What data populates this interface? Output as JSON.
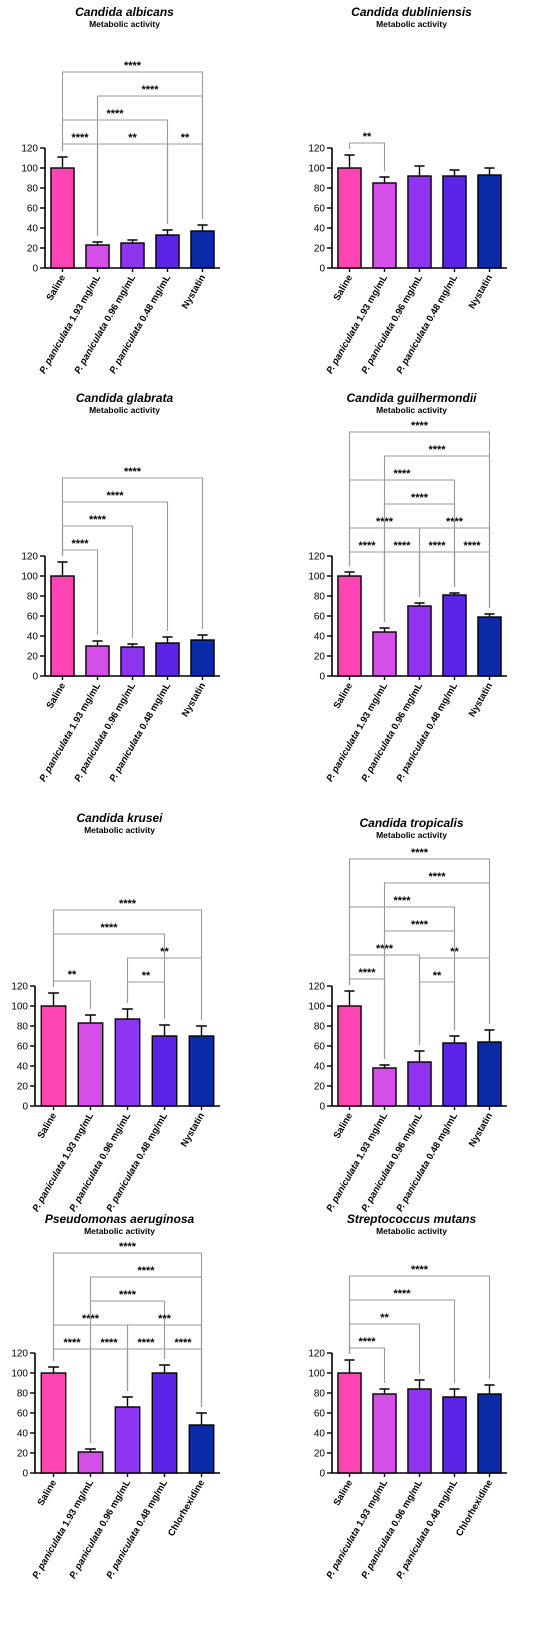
{
  "figure": {
    "colors": {
      "saline": "#ff44b4",
      "p193": "#d44ee8",
      "p096": "#8f34ef",
      "p048": "#5b24e6",
      "control": "#0b2aa7",
      "bracket": "#9a9a9a"
    }
  },
  "chart_data": [
    {
      "type": "bar",
      "title": "Candida albicans",
      "subtitle": "Metabolic activity",
      "categories": [
        "Saline",
        "P. paniculata 1.93 mg/mL",
        "P. paniculata 0.96 mg/mL",
        "P. paniculata 0.48 mg/mL",
        "Nystatin"
      ],
      "values": [
        100,
        23,
        25,
        33,
        37
      ],
      "errors": [
        11,
        3,
        3,
        5,
        6
      ],
      "ylim": [
        0,
        120
      ],
      "yticks": [
        0,
        20,
        40,
        60,
        80,
        100,
        120
      ],
      "colors": [
        "#ff44b4",
        "#d44ee8",
        "#8f34ef",
        "#5b24e6",
        "#0b2aa7"
      ],
      "significance": [
        {
          "from": 0,
          "to": 4,
          "label": "****"
        },
        {
          "from": 1,
          "to": 4,
          "label": "****"
        },
        {
          "from": 0,
          "to": 3,
          "label": "****"
        },
        {
          "from": 3,
          "to": 4,
          "label": "**"
        },
        {
          "from": 0,
          "to": 1,
          "label": "****"
        },
        {
          "from": 1,
          "to": 3,
          "label": "**"
        }
      ]
    },
    {
      "type": "bar",
      "title": "Candida dubliniensis",
      "subtitle": "Metabolic activity",
      "categories": [
        "Saline",
        "P. paniculata 1.93 mg/mL",
        "P. paniculata 0.96 mg/mL",
        "P. paniculata 0.48 mg/mL",
        "Nystatin"
      ],
      "values": [
        100,
        85,
        92,
        92,
        93
      ],
      "errors": [
        13,
        6,
        10,
        6,
        7
      ],
      "ylim": [
        0,
        120
      ],
      "yticks": [
        0,
        20,
        40,
        60,
        80,
        100,
        120
      ],
      "colors": [
        "#ff44b4",
        "#d44ee8",
        "#8f34ef",
        "#5b24e6",
        "#0b2aa7"
      ],
      "significance": [
        {
          "from": 0,
          "to": 1,
          "label": "**"
        }
      ]
    },
    {
      "type": "bar",
      "title": "Candida glabrata",
      "subtitle": "Metabolic activity",
      "categories": [
        "Saline",
        "P. paniculata 1.93 mg/mL",
        "P. paniculata 0.96 mg/mL",
        "P. paniculata 0.48 mg/mL",
        "Nystatin"
      ],
      "values": [
        100,
        30,
        29,
        33,
        36
      ],
      "errors": [
        14,
        5,
        3,
        6,
        5
      ],
      "ylim": [
        0,
        120
      ],
      "yticks": [
        0,
        20,
        40,
        60,
        80,
        100,
        120
      ],
      "colors": [
        "#ff44b4",
        "#d44ee8",
        "#8f34ef",
        "#5b24e6",
        "#0b2aa7"
      ],
      "significance": [
        {
          "from": 0,
          "to": 4,
          "label": "****"
        },
        {
          "from": 0,
          "to": 3,
          "label": "****"
        },
        {
          "from": 0,
          "to": 2,
          "label": "****"
        },
        {
          "from": 0,
          "to": 1,
          "label": "****"
        }
      ]
    },
    {
      "type": "bar",
      "title": "Candida guilhermondii",
      "subtitle": "Metabolic activity",
      "categories": [
        "Saline",
        "P. paniculata 1.93 mg/mL",
        "P. paniculata 0.96 mg/mL",
        "P. paniculata 0.48 mg/mL",
        "Nystatin"
      ],
      "values": [
        100,
        44,
        70,
        81,
        59
      ],
      "errors": [
        4,
        4,
        3,
        2,
        3
      ],
      "ylim": [
        0,
        120
      ],
      "yticks": [
        0,
        20,
        40,
        60,
        80,
        100,
        120
      ],
      "colors": [
        "#ff44b4",
        "#d44ee8",
        "#8f34ef",
        "#5b24e6",
        "#0b2aa7"
      ],
      "significance": [
        {
          "from": 0,
          "to": 4,
          "label": "****"
        },
        {
          "from": 1,
          "to": 4,
          "label": "****"
        },
        {
          "from": 0,
          "to": 3,
          "label": "****"
        },
        {
          "from": 1,
          "to": 3,
          "label": "****"
        },
        {
          "from": 0,
          "to": 2,
          "label": "****"
        },
        {
          "from": 2,
          "to": 4,
          "label": "****"
        },
        {
          "from": 0,
          "to": 1,
          "label": "****"
        },
        {
          "from": 1,
          "to": 2,
          "label": "****"
        },
        {
          "from": 2,
          "to": 3,
          "label": "****"
        },
        {
          "from": 3,
          "to": 4,
          "label": "****"
        }
      ]
    },
    {
      "type": "bar",
      "title": "Candida krusei",
      "subtitle": "Metabolic activity",
      "categories": [
        "Saline",
        "P. paniculata 1.93 mg/mL",
        "P. paniculata 0.96 mg/mL",
        "P. paniculata 0.48 mg/mL",
        "Nystatin"
      ],
      "values": [
        100,
        83,
        87,
        70,
        70
      ],
      "errors": [
        13,
        8,
        10,
        11,
        10
      ],
      "ylim": [
        0,
        120
      ],
      "yticks": [
        0,
        20,
        40,
        60,
        80,
        100,
        120
      ],
      "colors": [
        "#ff44b4",
        "#d44ee8",
        "#8f34ef",
        "#5b24e6",
        "#0b2aa7"
      ],
      "significance": [
        {
          "from": 0,
          "to": 4,
          "label": "****"
        },
        {
          "from": 0,
          "to": 3,
          "label": "****"
        },
        {
          "from": 2,
          "to": 4,
          "label": "**"
        },
        {
          "from": 0,
          "to": 1,
          "label": "**"
        },
        {
          "from": 2,
          "to": 3,
          "label": "**"
        }
      ]
    },
    {
      "type": "bar",
      "title": "Candida tropicalis",
      "subtitle": "Metabolic activity",
      "categories": [
        "Saline",
        "P. paniculata 1.93 mg/mL",
        "P. paniculata 0.96 mg/mL",
        "P. paniculata 0.48 mg/mL",
        "Nystatin"
      ],
      "values": [
        100,
        38,
        44,
        63,
        64
      ],
      "errors": [
        15,
        3,
        11,
        7,
        12
      ],
      "ylim": [
        0,
        120
      ],
      "yticks": [
        0,
        20,
        40,
        60,
        80,
        100,
        120
      ],
      "colors": [
        "#ff44b4",
        "#d44ee8",
        "#8f34ef",
        "#5b24e6",
        "#0b2aa7"
      ],
      "significance": [
        {
          "from": 0,
          "to": 4,
          "label": "****"
        },
        {
          "from": 1,
          "to": 4,
          "label": "****"
        },
        {
          "from": 0,
          "to": 3,
          "label": "****"
        },
        {
          "from": 1,
          "to": 3,
          "label": "****"
        },
        {
          "from": 0,
          "to": 2,
          "label": "****"
        },
        {
          "from": 2,
          "to": 4,
          "label": "**"
        },
        {
          "from": 0,
          "to": 1,
          "label": "****"
        },
        {
          "from": 2,
          "to": 3,
          "label": "**"
        }
      ]
    },
    {
      "type": "bar",
      "title": "Pseudomonas aeruginosa",
      "subtitle": "Metabolic activity",
      "categories": [
        "Saline",
        "P. paniculata 1.93 mg/mL",
        "P. paniculata 0.96 mg/mL",
        "P. paniculata 0.48 mg/mL",
        "Chlorhexidine"
      ],
      "values": [
        100,
        21,
        66,
        100,
        48
      ],
      "errors": [
        6,
        3,
        10,
        8,
        12
      ],
      "ylim": [
        0,
        120
      ],
      "yticks": [
        0,
        20,
        40,
        60,
        80,
        100,
        120
      ],
      "colors": [
        "#ff44b4",
        "#d44ee8",
        "#8f34ef",
        "#5b24e6",
        "#0b2aa7"
      ],
      "significance": [
        {
          "from": 0,
          "to": 4,
          "label": "****"
        },
        {
          "from": 1,
          "to": 4,
          "label": "****"
        },
        {
          "from": 1,
          "to": 3,
          "label": "****"
        },
        {
          "from": 0,
          "to": 2,
          "label": "****"
        },
        {
          "from": 2,
          "to": 4,
          "label": "***"
        },
        {
          "from": 0,
          "to": 1,
          "label": "****"
        },
        {
          "from": 1,
          "to": 2,
          "label": "****"
        },
        {
          "from": 2,
          "to": 3,
          "label": "****"
        },
        {
          "from": 3,
          "to": 4,
          "label": "****"
        }
      ]
    },
    {
      "type": "bar",
      "title": "Streptococcus mutans",
      "subtitle": "Metabolic activity",
      "categories": [
        "Saline",
        "P. paniculata 1.93 mg/mL",
        "P. paniculata 0.96 mg/mL",
        "P. paniculata 0.48 mg/mL",
        "Chlorhexidine"
      ],
      "values": [
        100,
        79,
        84,
        76,
        79
      ],
      "errors": [
        13,
        5,
        9,
        8,
        9
      ],
      "ylim": [
        0,
        120
      ],
      "yticks": [
        0,
        20,
        40,
        60,
        80,
        100,
        120
      ],
      "colors": [
        "#ff44b4",
        "#d44ee8",
        "#8f34ef",
        "#5b24e6",
        "#0b2aa7"
      ],
      "significance": [
        {
          "from": 0,
          "to": 4,
          "label": "****"
        },
        {
          "from": 0,
          "to": 3,
          "label": "****"
        },
        {
          "from": 0,
          "to": 2,
          "label": "**"
        },
        {
          "from": 0,
          "to": 1,
          "label": "****"
        }
      ]
    }
  ]
}
